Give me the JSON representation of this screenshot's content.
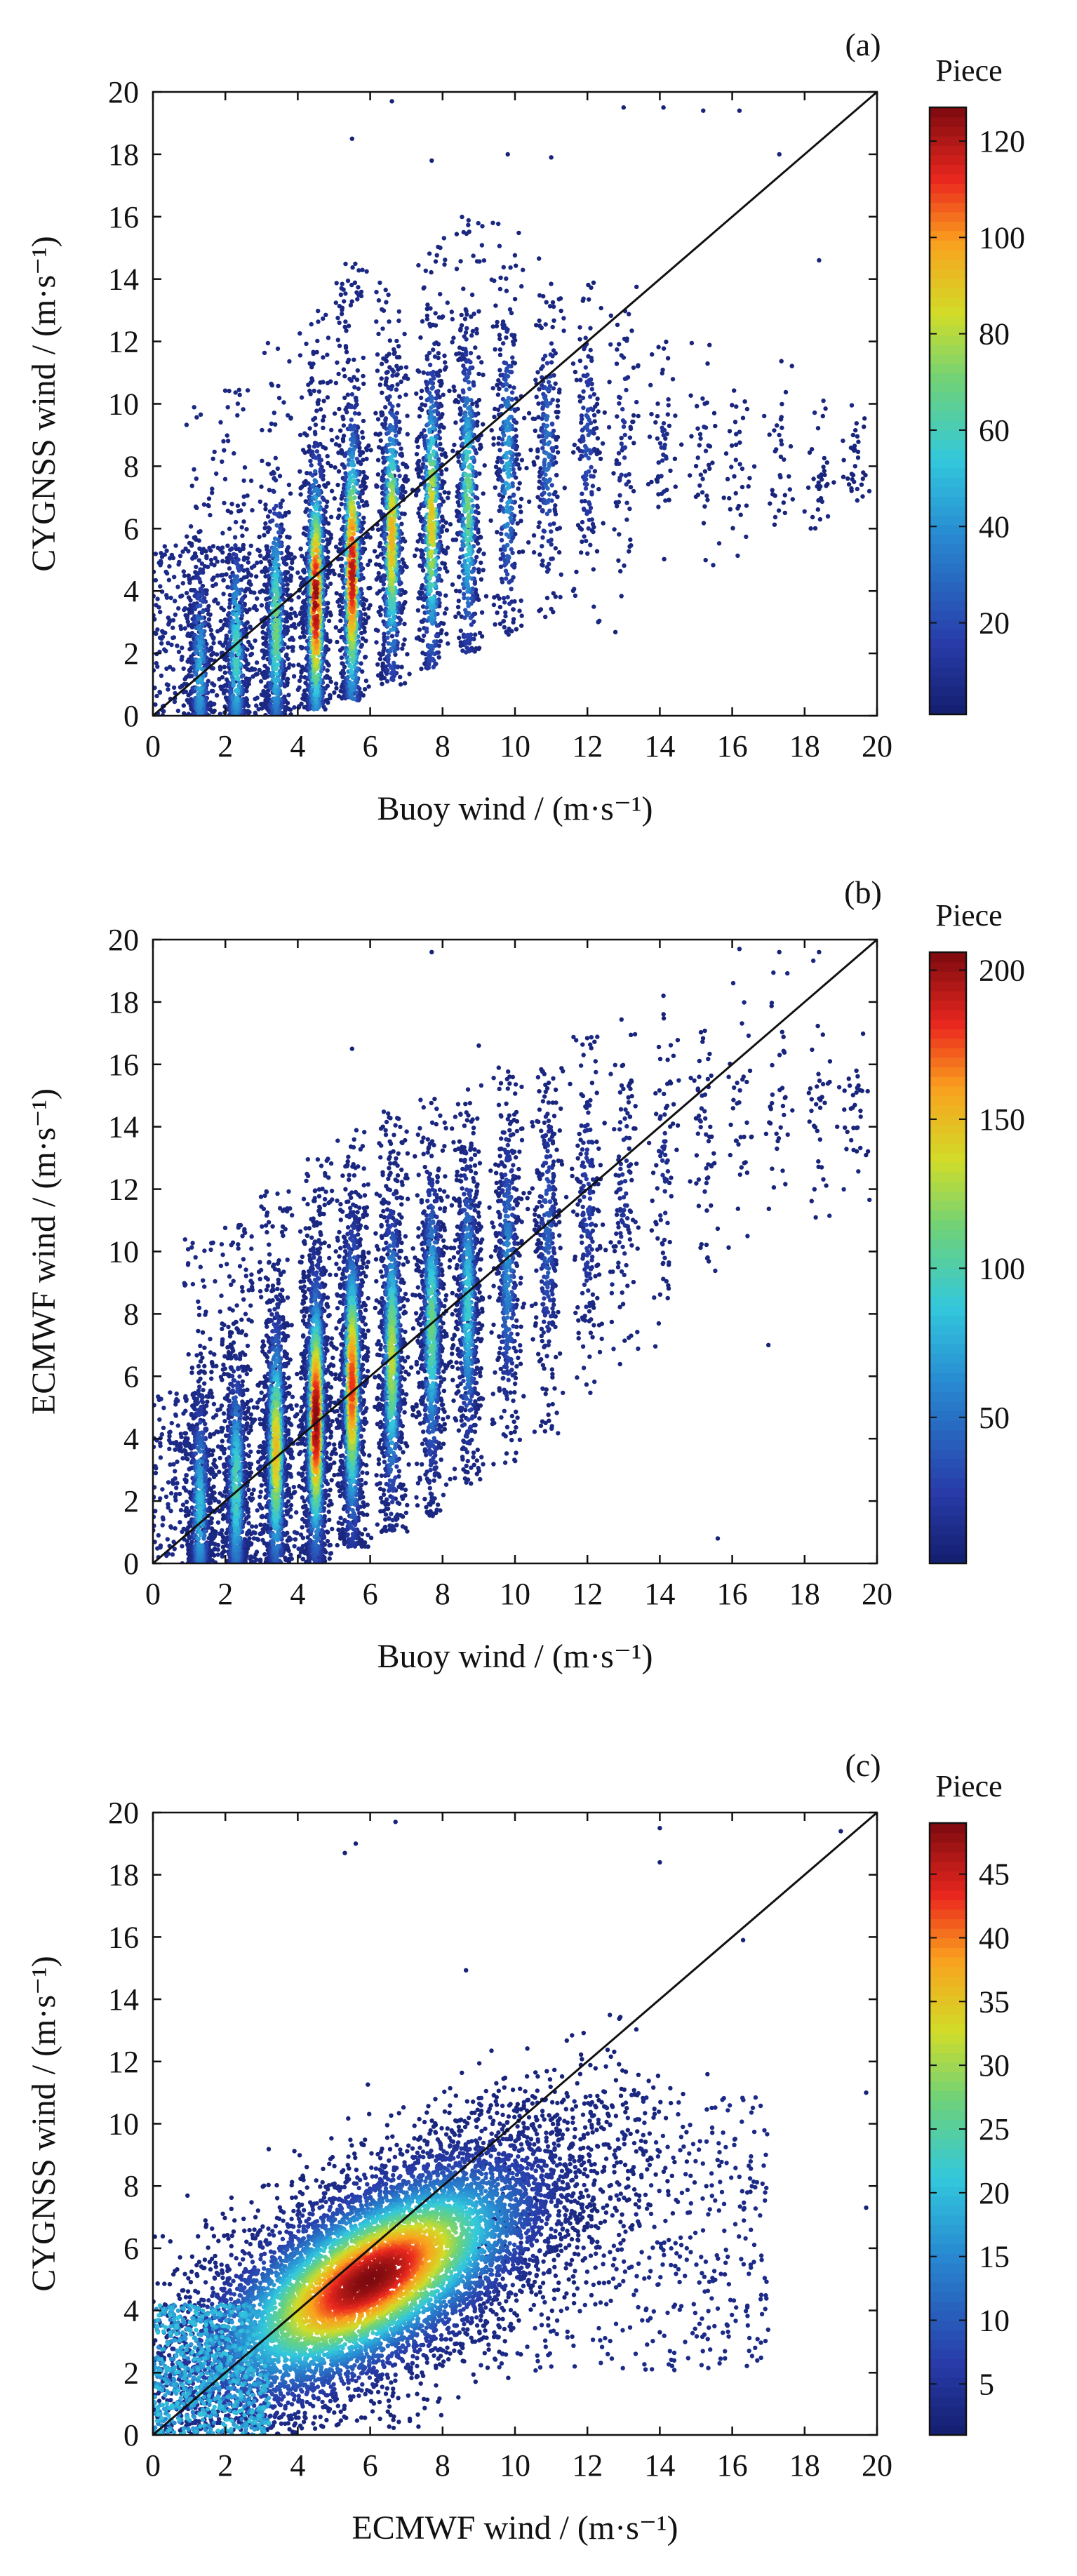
{
  "chart_data": [
    {
      "type": "scatter",
      "panel_label": "(a)",
      "xlabel": "Buoy wind / (m·s⁻¹)",
      "ylabel": "CYGNSS wind / (m·s⁻¹)",
      "xlim": [
        0,
        20
      ],
      "ylim": [
        0,
        20
      ],
      "xticks": [
        "0",
        "2",
        "4",
        "6",
        "8",
        "10",
        "12",
        "14",
        "16",
        "18",
        "20"
      ],
      "yticks": [
        "0",
        "2",
        "4",
        "6",
        "8",
        "10",
        "12",
        "14",
        "16",
        "18",
        "20"
      ],
      "reference_line": {
        "x": [
          0,
          20
        ],
        "y": [
          0,
          20
        ]
      },
      "colorbar": {
        "title": "Piece",
        "min": 1,
        "max": 127,
        "ticks": [
          20,
          40,
          60,
          80,
          100,
          120
        ],
        "tick_labels": [
          "20",
          "40",
          "60",
          "80",
          "100",
          "120"
        ]
      },
      "binned_density": {
        "x_values": [
          1.3,
          2.3,
          3.4,
          4.5,
          5.5,
          6.6,
          7.7,
          8.7,
          9.8,
          10.9,
          12.0,
          13.0,
          14.1,
          15.2,
          16.2,
          17.3,
          18.4,
          19.4
        ],
        "y_center": [
          1.4,
          2.0,
          2.9,
          3.7,
          4.6,
          5.7,
          6.3,
          6.9,
          7.9,
          8.5,
          8.7,
          8.6,
          8.7,
          8.6,
          8.4,
          8.6,
          8.0,
          8.2
        ],
        "y_range": [
          [
            0,
            10.0
          ],
          [
            0,
            10.5
          ],
          [
            0,
            12.0
          ],
          [
            0.2,
            13.0
          ],
          [
            0.5,
            14.5
          ],
          [
            1.0,
            14.0
          ],
          [
            1.5,
            15.5
          ],
          [
            2.0,
            16.0
          ],
          [
            2.5,
            16.0
          ],
          [
            3.0,
            15.0
          ],
          [
            3.0,
            14.0
          ],
          [
            1.5,
            14.0
          ],
          [
            4.5,
            12.0
          ],
          [
            4.5,
            12.5
          ],
          [
            5.0,
            11.0
          ],
          [
            5.5,
            11.5
          ],
          [
            5.5,
            10.5
          ],
          [
            6.0,
            10.0
          ]
        ],
        "peak_count": [
          45,
          60,
          70,
          125,
          120,
          95,
          90,
          70,
          45,
          30,
          20,
          10,
          7,
          5,
          3,
          3,
          2,
          2
        ]
      },
      "scattered_outliers": [
        [
          5.5,
          18.5
        ],
        [
          6.6,
          19.7
        ],
        [
          7.7,
          17.8
        ],
        [
          9.8,
          18.0
        ],
        [
          11.0,
          17.9
        ],
        [
          13.0,
          19.5
        ],
        [
          14.1,
          19.5
        ],
        [
          15.2,
          19.4
        ],
        [
          16.2,
          19.4
        ],
        [
          18.4,
          14.6
        ],
        [
          17.3,
          18.0
        ]
      ]
    },
    {
      "type": "scatter",
      "panel_label": "(b)",
      "xlabel": "Buoy wind / (m·s⁻¹)",
      "ylabel": "ECMWF wind / (m·s⁻¹)",
      "xlim": [
        0,
        20
      ],
      "ylim": [
        0,
        20
      ],
      "xticks": [
        "0",
        "2",
        "4",
        "6",
        "8",
        "10",
        "12",
        "14",
        "16",
        "18",
        "20"
      ],
      "yticks": [
        "0",
        "2",
        "4",
        "6",
        "8",
        "10",
        "12",
        "14",
        "16",
        "18",
        "20"
      ],
      "reference_line": {
        "x": [
          0,
          20
        ],
        "y": [
          0,
          20
        ]
      },
      "colorbar": {
        "title": "Piece",
        "min": 1,
        "max": 206,
        "ticks": [
          50,
          100,
          150,
          200
        ],
        "tick_labels": [
          "50",
          "100",
          "150",
          "200"
        ]
      },
      "binned_density": {
        "x_values": [
          1.3,
          2.3,
          3.4,
          4.5,
          5.5,
          6.6,
          7.7,
          8.7,
          9.8,
          10.9,
          12.0,
          13.0,
          14.1,
          15.2,
          16.2,
          17.3,
          18.4,
          19.4
        ],
        "y_center": [
          1.8,
          2.5,
          3.6,
          4.6,
          5.7,
          6.6,
          7.6,
          8.3,
          9.5,
          10.5,
          11.3,
          12.0,
          12.6,
          13.5,
          14.2,
          14.4,
          14.5,
          14.5
        ],
        "y_range": [
          [
            0,
            10.5
          ],
          [
            0,
            11.0
          ],
          [
            0,
            12.0
          ],
          [
            0,
            13.0
          ],
          [
            0.5,
            14.0
          ],
          [
            1.0,
            14.5
          ],
          [
            1.5,
            15.0
          ],
          [
            2.5,
            15.5
          ],
          [
            3.0,
            16.0
          ],
          [
            4.0,
            16.0
          ],
          [
            5.0,
            17.0
          ],
          [
            6.0,
            17.5
          ],
          [
            6.5,
            18.0
          ],
          [
            8.0,
            18.5
          ],
          [
            9.0,
            19.0
          ],
          [
            10.0,
            19.5
          ],
          [
            11.0,
            19.5
          ],
          [
            11.5,
            17.0
          ]
        ],
        "peak_count": [
          80,
          100,
          150,
          205,
          180,
          130,
          110,
          90,
          60,
          40,
          25,
          15,
          10,
          7,
          4,
          3,
          2,
          2
        ]
      },
      "scattered_outliers": [
        [
          7.7,
          19.6
        ],
        [
          5.5,
          16.5
        ],
        [
          9.0,
          16.6
        ],
        [
          14.1,
          18.2
        ],
        [
          16.2,
          19.7
        ],
        [
          17.3,
          19.6
        ],
        [
          18.4,
          19.6
        ],
        [
          15.6,
          0.8
        ],
        [
          17.0,
          7.0
        ],
        [
          18.9,
          14.0
        ]
      ]
    },
    {
      "type": "scatter",
      "panel_label": "(c)",
      "xlabel": "ECMWF wind / (m·s⁻¹)",
      "ylabel": "CYGNSS wind / (m·s⁻¹)",
      "xlim": [
        0,
        20
      ],
      "ylim": [
        0,
        20
      ],
      "xticks": [
        "0",
        "2",
        "4",
        "6",
        "8",
        "10",
        "12",
        "14",
        "16",
        "18",
        "20"
      ],
      "yticks": [
        "0",
        "2",
        "4",
        "6",
        "8",
        "10",
        "12",
        "14",
        "16",
        "18",
        "20"
      ],
      "reference_line": {
        "x": [
          0,
          20
        ],
        "y": [
          0,
          20
        ]
      },
      "colorbar": {
        "title": "Piece",
        "min": 1,
        "max": 49,
        "ticks": [
          5,
          10,
          15,
          20,
          25,
          30,
          35,
          40,
          45
        ],
        "tick_labels": [
          "5",
          "10",
          "15",
          "20",
          "25",
          "30",
          "35",
          "40",
          "45"
        ]
      },
      "continuous_density": {
        "core_center": [
          6.0,
          5.0
        ],
        "core_peak_count": 46,
        "major_axis_slope": 0.75,
        "x_extent": [
          0,
          20
        ],
        "y_extent": [
          0,
          19.7
        ]
      },
      "scattered_outliers": [
        [
          5.3,
          18.7
        ],
        [
          5.6,
          19.0
        ],
        [
          6.7,
          19.7
        ],
        [
          14.0,
          19.5
        ],
        [
          14.0,
          18.4
        ],
        [
          19.0,
          19.4
        ],
        [
          19.7,
          11.0
        ],
        [
          19.7,
          7.3
        ],
        [
          16.3,
          15.9
        ],
        [
          14.0,
          3.3
        ]
      ]
    }
  ]
}
